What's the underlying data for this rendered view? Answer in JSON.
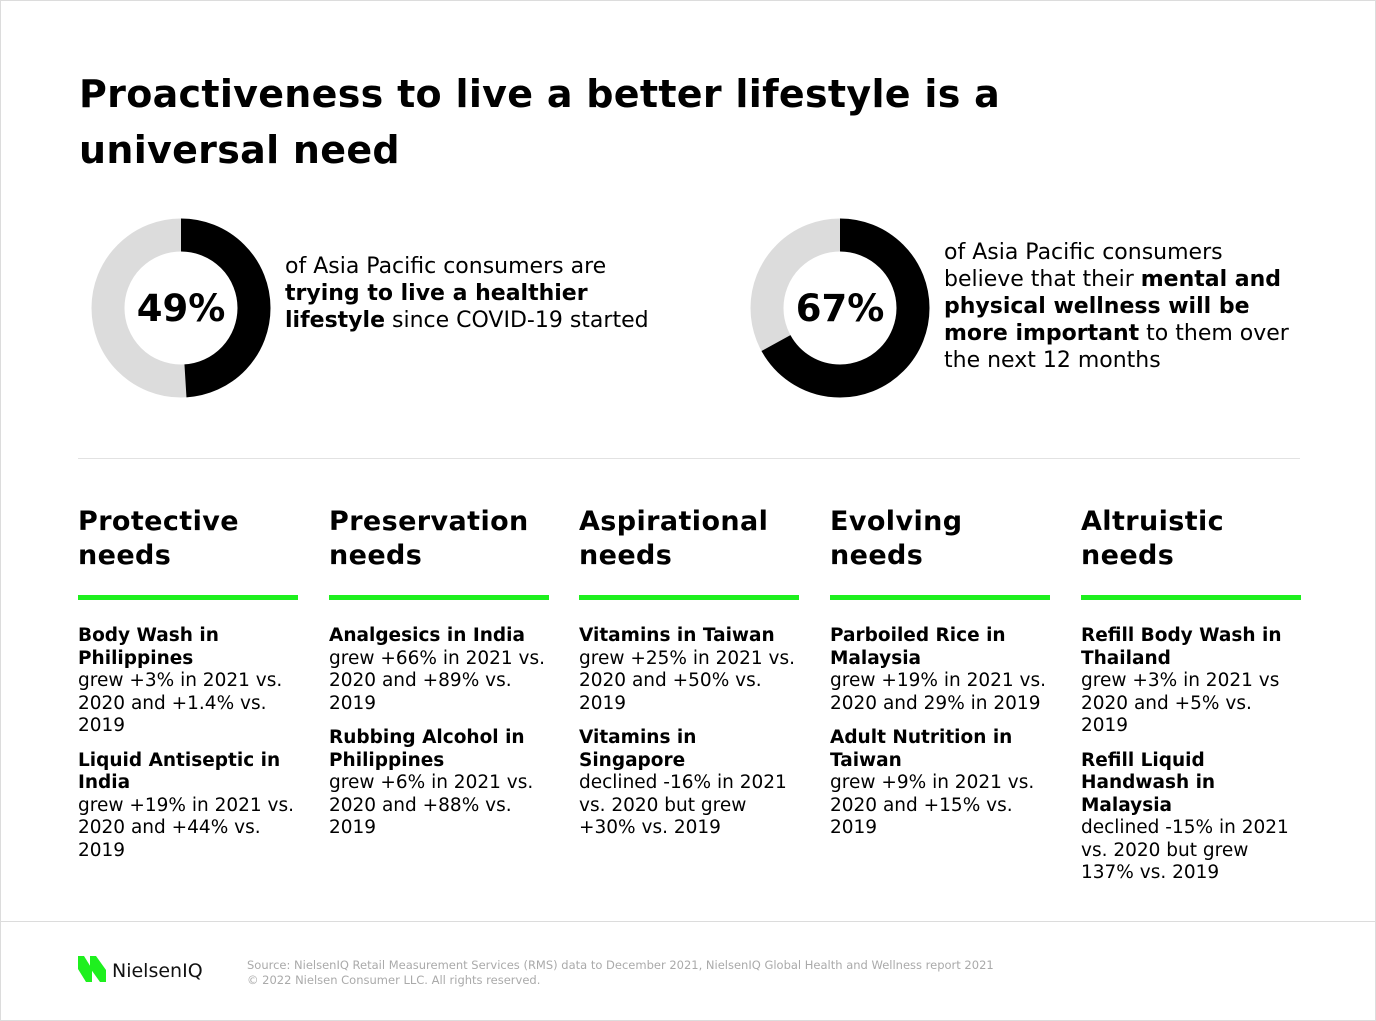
{
  "title": "Proactiveness to live a better lifestyle is a universal need",
  "stats": [
    {
      "value": 49,
      "label": "49%",
      "segments": [
        {
          "text": "of Asia Pacific consumers are ",
          "bold": false
        },
        {
          "text": "trying to live a healthier lifestyle",
          "bold": true
        },
        {
          "text": " since COVID-19 started",
          "bold": false
        }
      ]
    },
    {
      "value": 67,
      "label": "67%",
      "segments": [
        {
          "text": "of Asia Pacific consumers believe that their ",
          "bold": false
        },
        {
          "text": "mental and physical wellness will be more important",
          "bold": true
        },
        {
          "text": " to them over the next 12 months",
          "bold": false
        }
      ]
    }
  ],
  "colors": {
    "accent": "#1ef01e",
    "donut_fill": "#000000",
    "donut_track": "#dcdcdc"
  },
  "columns": [
    {
      "heading": "Protective needs",
      "items": [
        {
          "title": "Body Wash in Philippines",
          "text": "grew +3% in 2021 vs. 2020 and +1.4% vs. 2019"
        },
        {
          "title": "Liquid Antiseptic in India",
          "text": "grew +19% in 2021 vs. 2020 and +44% vs. 2019"
        }
      ]
    },
    {
      "heading": "Preservation needs",
      "items": [
        {
          "title": "Analgesics in India",
          "text": "grew +66% in 2021 vs. 2020 and +89% vs. 2019"
        },
        {
          "title": "Rubbing Alcohol in Philippines",
          "text": "grew +6% in 2021 vs. 2020 and +88% vs. 2019"
        }
      ]
    },
    {
      "heading": "Aspirational needs",
      "items": [
        {
          "title": "Vitamins in Taiwan",
          "text": "grew +25% in 2021 vs. 2020 and +50% vs. 2019"
        },
        {
          "title": "Vitamins in Singapore",
          "text": "declined -16% in 2021 vs. 2020 but grew +30% vs. 2019"
        }
      ]
    },
    {
      "heading": "Evolving needs",
      "items": [
        {
          "title": "Parboiled Rice in Malaysia",
          "text": "grew +19% in 2021 vs. 2020 and 29% in 2019"
        },
        {
          "title": "Adult Nutrition in Taiwan",
          "text": "grew +9% in 2021 vs. 2020 and +15% vs. 2019"
        }
      ]
    },
    {
      "heading": "Altruistic needs",
      "items": [
        {
          "title": "Refill Body Wash in Thailand",
          "text": "grew +3% in 2021 vs 2020 and +5% vs. 2019"
        },
        {
          "title": "Refill Liquid Handwash in Malaysia",
          "text": "declined -15% in 2021 vs. 2020 but grew 137% vs. 2019"
        }
      ]
    }
  ],
  "footer": {
    "logo": "NielsenIQ",
    "source": "Source: NielsenIQ Retail Measurement Services (RMS) data to December 2021, NielsenIQ  Global Health and Wellness report 2021",
    "copyright": "© 2022 Nielsen Consumer LLC. All rights reserved."
  }
}
